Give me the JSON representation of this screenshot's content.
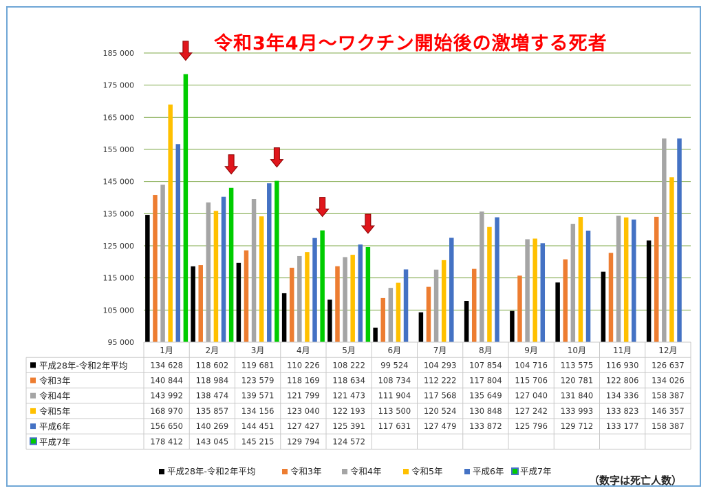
{
  "chart_data": {
    "type": "bar",
    "title": "令和3年4月～ワクチン開始後の激増する死者",
    "note": "（数字は死亡人数）",
    "categories": [
      "1月",
      "2月",
      "3月",
      "4月",
      "5月",
      "6月",
      "7月",
      "8月",
      "9月",
      "10月",
      "11月",
      "12月"
    ],
    "ylim": [
      95000,
      185000
    ],
    "yticks": [
      95000,
      105000,
      115000,
      125000,
      135000,
      145000,
      155000,
      165000,
      175000,
      185000
    ],
    "ytick_labels": [
      "95 000",
      "105 000",
      "115 000",
      "125 000",
      "135 000",
      "145 000",
      "155 000",
      "165 000",
      "175 000",
      "185 000"
    ],
    "grid": true,
    "gridline_color": "#7fa84a",
    "legend_position": "bottom",
    "arrow_categories": [
      "1月",
      "2月",
      "3月",
      "4月",
      "5月"
    ],
    "series": [
      {
        "name": "平成28年-令和2年平均",
        "color": "#000000",
        "values": [
          134628,
          118602,
          119681,
          110226,
          108222,
          99524,
          104293,
          107854,
          104716,
          113575,
          116930,
          126637
        ],
        "labels": [
          "134 628",
          "118 602",
          "119 681",
          "110 226",
          "108 222",
          "99 524",
          "104 293",
          "107 854",
          "104 716",
          "113 575",
          "116 930",
          "126 637"
        ]
      },
      {
        "name": "令和3年",
        "color": "#ed7d31",
        "values": [
          140844,
          118984,
          123579,
          118169,
          118634,
          108734,
          112222,
          117804,
          115706,
          120781,
          122806,
          134026
        ],
        "labels": [
          "140 844",
          "118 984",
          "123 579",
          "118 169",
          "118 634",
          "108 734",
          "112 222",
          "117 804",
          "115 706",
          "120 781",
          "122 806",
          "134 026"
        ]
      },
      {
        "name": "令和4年",
        "color": "#a5a5a5",
        "values": [
          143992,
          138474,
          139571,
          121799,
          121473,
          111904,
          117568,
          135649,
          127040,
          131840,
          134336,
          158387
        ],
        "labels": [
          "143 992",
          "138 474",
          "139 571",
          "121 799",
          "121 473",
          "111 904",
          "117 568",
          "135 649",
          "127 040",
          "131 840",
          "134 336",
          "158 387"
        ]
      },
      {
        "name": "令和5年",
        "color": "#ffc000",
        "values": [
          168970,
          135857,
          134156,
          123040,
          122193,
          113500,
          120524,
          130848,
          127242,
          133993,
          133823,
          146357
        ],
        "labels": [
          "168 970",
          "135 857",
          "134 156",
          "123 040",
          "122 193",
          "113 500",
          "120 524",
          "130 848",
          "127 242",
          "133 993",
          "133 823",
          "146 357"
        ]
      },
      {
        "name": "平成6年",
        "color": "#4472c4",
        "values": [
          156650,
          140269,
          144451,
          127427,
          125391,
          117631,
          127479,
          133872,
          125796,
          129712,
          133177,
          158387
        ],
        "labels": [
          "156 650",
          "140 269",
          "144 451",
          "127 427",
          "125 391",
          "117 631",
          "127 479",
          "133 872",
          "125 796",
          "129 712",
          "133 177",
          "158 387"
        ]
      },
      {
        "name": "平成7年",
        "color": "#00cc00",
        "legend_border": "#4472c4",
        "values": [
          178412,
          143045,
          145215,
          129794,
          124572,
          null,
          null,
          null,
          null,
          null,
          null,
          null
        ],
        "labels": [
          "178 412",
          "143 045",
          "145 215",
          "129 794",
          "124 572",
          "",
          "",
          "",
          "",
          "",
          "",
          ""
        ]
      }
    ]
  }
}
